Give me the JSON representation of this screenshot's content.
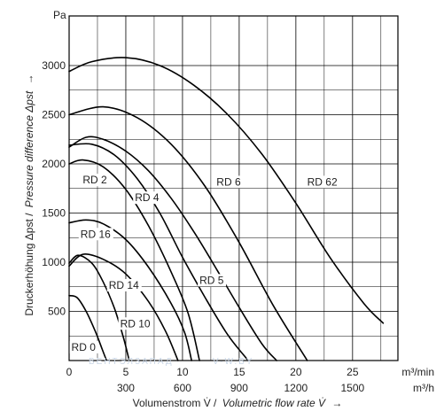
{
  "chart_data": {
    "type": "line",
    "y_unit": "Pa",
    "ylabel_de": "Druckerhöhung Δpst /",
    "ylabel_en": "Pressure difference Δpst",
    "ylabel_arrow": "→",
    "xlabel_de": "Volumenstrom V̇ /",
    "xlabel_en": "Volumetric flow rate V̇",
    "xlabel_arrow": "→",
    "x_unit_min": "m³/min",
    "x_unit_h": "m³/h",
    "xlim": [
      0,
      29
    ],
    "ylim": [
      0,
      3000
    ],
    "grid": true,
    "x_ticks_min": [
      {
        "v": 0,
        "label": "0"
      },
      {
        "v": 5,
        "label": "5"
      },
      {
        "v": 10,
        "label": "10"
      },
      {
        "v": 15,
        "label": "15"
      },
      {
        "v": 20,
        "label": "20"
      },
      {
        "v": 25,
        "label": "25"
      }
    ],
    "x_ticks_h": [
      {
        "v": 5,
        "label": "300"
      },
      {
        "v": 10,
        "label": "600"
      },
      {
        "v": 15,
        "label": "900"
      },
      {
        "v": 20,
        "label": "1200"
      },
      {
        "v": 25,
        "label": "1500"
      }
    ],
    "y_ticks": [
      {
        "v": 500,
        "label": "500"
      },
      {
        "v": 1000,
        "label": "1000"
      },
      {
        "v": 1500,
        "label": "1500"
      },
      {
        "v": 2000,
        "label": "2000"
      },
      {
        "v": 2500,
        "label": "2500"
      },
      {
        "v": 3000,
        "label": "3000"
      }
    ],
    "series": [
      {
        "name": "RD 0",
        "label_at": [
          0.2,
          100
        ],
        "x": [
          0,
          0.7,
          1.5,
          2.3,
          2.9,
          3.3
        ],
        "y": [
          660,
          640,
          500,
          300,
          120,
          0
        ]
      },
      {
        "name": "RD 10",
        "label_at": [
          4.5,
          340
        ],
        "x": [
          0,
          0.8,
          2,
          3,
          4,
          4.8,
          5.3
        ],
        "y": [
          990,
          1070,
          990,
          800,
          530,
          230,
          0
        ]
      },
      {
        "name": "RD 14",
        "label_at": [
          3.5,
          730
        ],
        "x": [
          0,
          1.2,
          3,
          5,
          7,
          8.5,
          9.6
        ],
        "y": [
          960,
          1080,
          1030,
          880,
          600,
          300,
          0
        ]
      },
      {
        "name": "RD 16",
        "label_at": [
          1.0,
          1250
        ],
        "x": [
          0,
          1.5,
          3,
          5,
          7,
          9,
          10.2,
          10.8
        ],
        "y": [
          1400,
          1430,
          1390,
          1230,
          950,
          580,
          280,
          0
        ]
      },
      {
        "name": "RD 2",
        "label_at": [
          1.2,
          1800
        ],
        "x": [
          0,
          1.2,
          3,
          5,
          7,
          9,
          10.5,
          11.5
        ],
        "y": [
          2000,
          2040,
          1970,
          1740,
          1370,
          900,
          480,
          0
        ]
      },
      {
        "name": "RD 4",
        "label_at": [
          5.8,
          1620
        ],
        "x": [
          0,
          2,
          4,
          6,
          8,
          10,
          12,
          14,
          15.8
        ],
        "y": [
          2190,
          2200,
          2090,
          1850,
          1500,
          1050,
          640,
          260,
          0
        ]
      },
      {
        "name": "RD 5",
        "label_at": [
          11.5,
          780
        ],
        "x": [
          0,
          1.5,
          3,
          5,
          7,
          9,
          11,
          13,
          15,
          17,
          18.3
        ],
        "y": [
          2170,
          2270,
          2250,
          2130,
          1930,
          1650,
          1310,
          930,
          540,
          170,
          0
        ]
      },
      {
        "name": "RD 6",
        "label_at": [
          13.0,
          1780
        ],
        "x": [
          0,
          3,
          6,
          9,
          12,
          15,
          18,
          21
        ],
        "y": [
          2500,
          2580,
          2470,
          2200,
          1770,
          1200,
          560,
          0
        ]
      },
      {
        "name": "RD 62",
        "label_at": [
          21.0,
          1780
        ],
        "x": [
          0,
          2,
          5,
          8,
          11,
          14,
          17,
          20,
          23,
          26,
          27.7
        ],
        "y": [
          2940,
          3040,
          3080,
          3000,
          2800,
          2500,
          2100,
          1600,
          1050,
          580,
          380
        ]
      }
    ],
    "watermark_a": "ВЕНТЭЛЗАПАД",
    "watermark_b": "V-W.BY"
  }
}
